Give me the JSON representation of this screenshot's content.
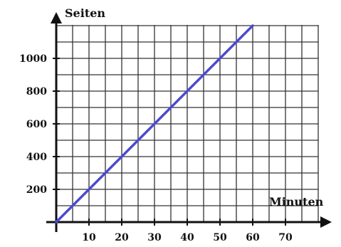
{
  "chart_data": {
    "type": "line",
    "xlabel": "Minuten",
    "ylabel": "Seiten",
    "xlim": [
      0,
      82
    ],
    "ylim": [
      0,
      1200
    ],
    "x_ticks": [
      10,
      20,
      30,
      40,
      50,
      60,
      70
    ],
    "y_ticks": [
      200,
      400,
      600,
      800,
      1000
    ],
    "x_tick_labels": [
      "10",
      "20",
      "30",
      "40",
      "50",
      "60",
      "70"
    ],
    "y_tick_labels": [
      "200",
      "400",
      "600",
      "800",
      "1000"
    ],
    "grid": true,
    "series": [
      {
        "x": [
          0,
          10,
          20,
          30,
          40,
          50,
          60
        ],
        "y": [
          0,
          200,
          400,
          600,
          800,
          1000,
          1200
        ],
        "color": "#4a4ad0"
      }
    ]
  }
}
